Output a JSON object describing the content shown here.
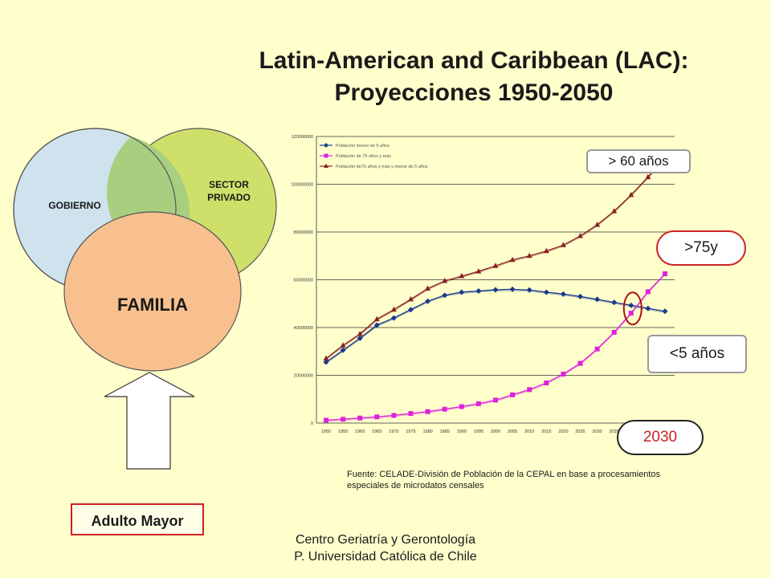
{
  "title": {
    "line1": "Latin-American and Caribbean (LAC):",
    "line2": "Proyecciones 1950-2050"
  },
  "venn": {
    "gobierno": "GOBIERNO",
    "sector_line1": "SECTOR",
    "sector_line2": "PRIVADO",
    "familia": "FAMILIA",
    "colors": {
      "gobierno": "#cfe3ee",
      "sector": "#cfe06a",
      "overlap": "#a8cf80",
      "familia": "#f8c08e"
    }
  },
  "adulto_mayor": "Adulto Mayor",
  "footer": {
    "line1": "Centro Geriatría y Gerontología",
    "line2": "P. Universidad Católica de Chile"
  },
  "fuente": {
    "line1": "Fuente: CELADE-División de Población de la CEPAL en base a procesamientos",
    "line2": "especiales de microdatos censales"
  },
  "callouts": {
    "over60": "> 60 años",
    "over75": ">75y",
    "under5": "<5 años",
    "year2030": "2030"
  },
  "chart_data": {
    "type": "line",
    "title": "",
    "xlabel": "",
    "ylabel": "",
    "ylim": [
      0,
      120000000
    ],
    "yticks": [
      "0",
      "20000000",
      "40000000",
      "60000000",
      "80000000",
      "100000000",
      "120000000"
    ],
    "grid": true,
    "legend_position": "top-left",
    "categories": [
      "1950",
      "1955",
      "1960",
      "1965",
      "1970",
      "1975",
      "1980",
      "1985",
      "1990",
      "1995",
      "2000",
      "2005",
      "2010",
      "2015",
      "2020",
      "2025",
      "2030",
      "2035",
      "2040",
      "2045",
      "2050"
    ],
    "series": [
      {
        "name": "Población menor de 5 años",
        "color": "#1a3a8a",
        "marker": "diamond",
        "values": [
          25500000,
          30500000,
          35500000,
          41000000,
          44000000,
          47500000,
          51000000,
          53500000,
          54800000,
          55300000,
          55800000,
          56000000,
          55700000,
          54800000,
          54000000,
          53000000,
          51800000,
          50500000,
          49300000,
          48000000,
          46800000
        ]
      },
      {
        "name": "Población de 75 años y más",
        "color": "#dd22dd",
        "marker": "square",
        "values": [
          1200000,
          1600000,
          2100000,
          2600000,
          3200000,
          4000000,
          4800000,
          5800000,
          6900000,
          8100000,
          9600000,
          11800000,
          14000000,
          16800000,
          20500000,
          25000000,
          31000000,
          38000000,
          46000000,
          55000000,
          62500000
        ]
      },
      {
        "name": "Población de75 años y más y menor de 5 años",
        "color": "#882222",
        "marker": "triangle",
        "values": [
          27000000,
          32500000,
          37300000,
          43500000,
          47500000,
          51800000,
          56300000,
          59500000,
          61500000,
          63500000,
          65800000,
          68300000,
          70000000,
          72000000,
          74500000,
          78300000,
          83000000,
          88700000,
          95500000,
          103000000,
          111000000
        ]
      }
    ]
  }
}
